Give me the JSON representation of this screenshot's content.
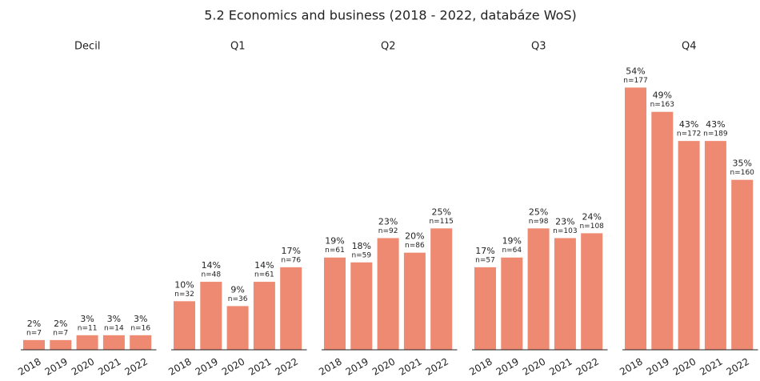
{
  "title": "5.2 Economics and business (2018 - 2022, databáze WoS)",
  "chart_data": [
    {
      "type": "bar",
      "title": "Decil",
      "categories": [
        "2018",
        "2019",
        "2020",
        "2021",
        "2022"
      ],
      "values": [
        2,
        2,
        3,
        3,
        3
      ],
      "value_labels": [
        "2%",
        "2%",
        "3%",
        "3%",
        "3%"
      ],
      "count_labels": [
        "n=7",
        "n=7",
        "n=11",
        "n=14",
        "n=16"
      ],
      "color": "#ee8a72",
      "ylim": [
        0,
        60
      ]
    },
    {
      "type": "bar",
      "title": "Q1",
      "categories": [
        "2018",
        "2019",
        "2020",
        "2021",
        "2022"
      ],
      "values": [
        10,
        14,
        9,
        14,
        17
      ],
      "value_labels": [
        "10%",
        "14%",
        "9%",
        "14%",
        "17%"
      ],
      "count_labels": [
        "n=32",
        "n=48",
        "n=36",
        "n=61",
        "n=76"
      ],
      "color": "#ee8a72",
      "ylim": [
        0,
        60
      ]
    },
    {
      "type": "bar",
      "title": "Q2",
      "categories": [
        "2018",
        "2019",
        "2020",
        "2021",
        "2022"
      ],
      "values": [
        19,
        18,
        23,
        20,
        25
      ],
      "value_labels": [
        "19%",
        "18%",
        "23%",
        "20%",
        "25%"
      ],
      "count_labels": [
        "n=61",
        "n=59",
        "n=92",
        "n=86",
        "n=115"
      ],
      "color": "#ee8a72",
      "ylim": [
        0,
        60
      ]
    },
    {
      "type": "bar",
      "title": "Q3",
      "categories": [
        "2018",
        "2019",
        "2020",
        "2021",
        "2022"
      ],
      "values": [
        17,
        19,
        25,
        23,
        24
      ],
      "value_labels": [
        "17%",
        "19%",
        "25%",
        "23%",
        "24%"
      ],
      "count_labels": [
        "n=57",
        "n=64",
        "n=98",
        "n=103",
        "n=108"
      ],
      "color": "#ee8a72",
      "ylim": [
        0,
        60
      ]
    },
    {
      "type": "bar",
      "title": "Q4",
      "categories": [
        "2018",
        "2019",
        "2020",
        "2021",
        "2022"
      ],
      "values": [
        54,
        49,
        43,
        43,
        35
      ],
      "value_labels": [
        "54%",
        "49%",
        "43%",
        "43%",
        "35%"
      ],
      "count_labels": [
        "n=177",
        "n=163",
        "n=172",
        "n=189",
        "n=160"
      ],
      "color": "#ee8a72",
      "ylim": [
        0,
        60
      ]
    }
  ]
}
